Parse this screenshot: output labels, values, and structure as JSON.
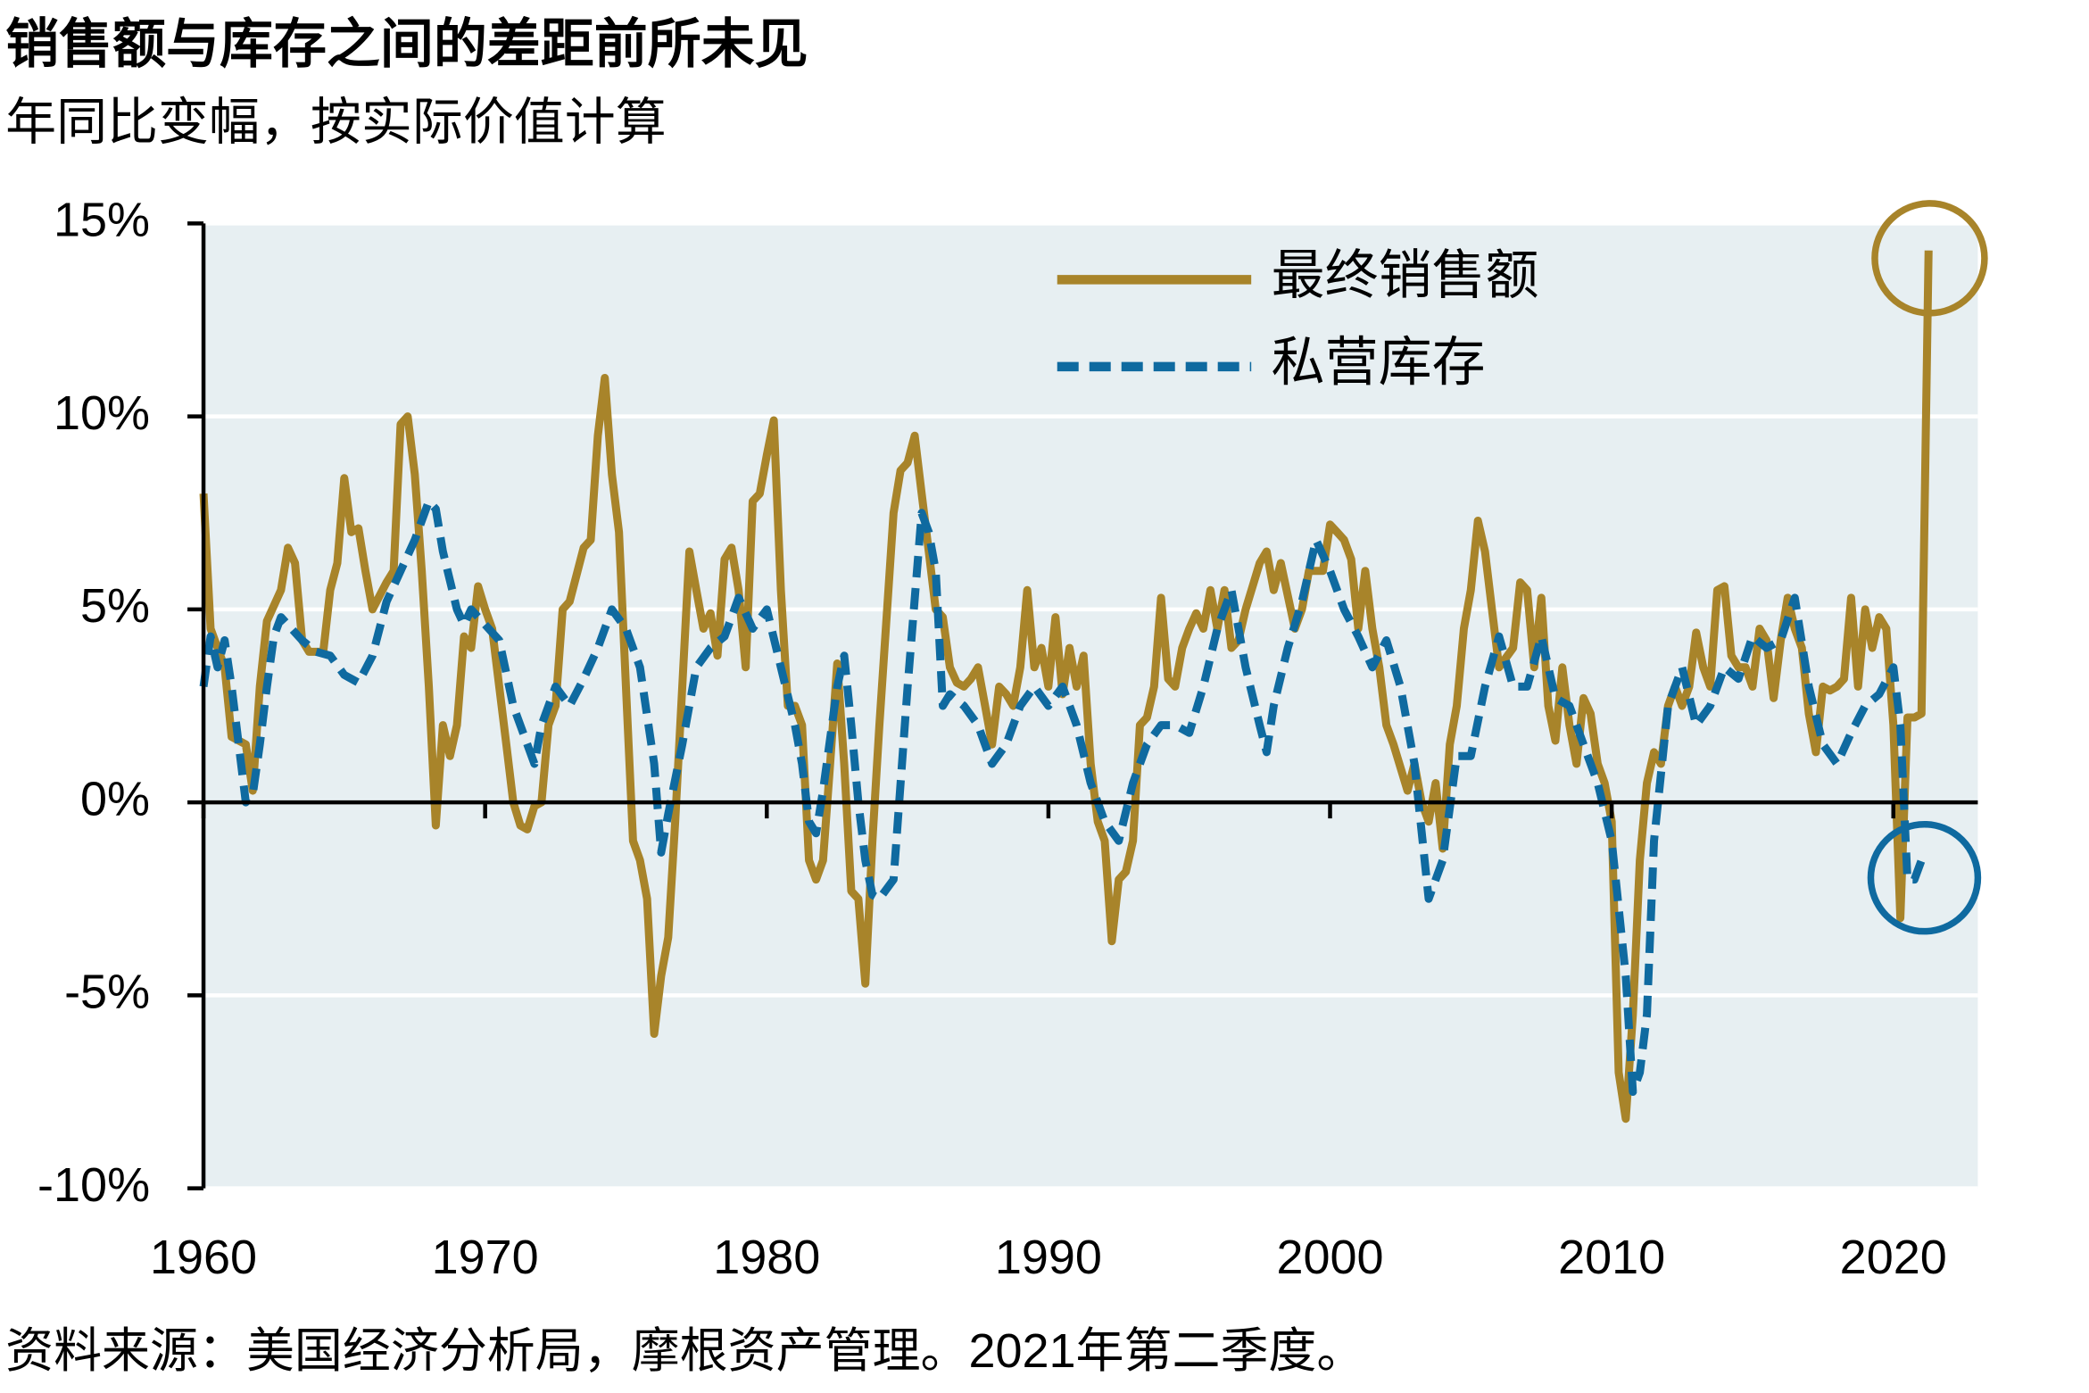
{
  "chart_data": {
    "type": "line",
    "title": "销售额与库存之间的差距前所未见",
    "subtitle": "年同比变幅，按实际价值计算",
    "source": "资料来源：美国经济分析局，摩根资产管理。2021年第二季度。",
    "xlim": [
      1960,
      2023
    ],
    "xticks": [
      1960,
      1970,
      1980,
      1990,
      2000,
      2010,
      2020
    ],
    "ylim": [
      -10,
      15
    ],
    "yticks": [
      {
        "value": -10,
        "label": "-10%"
      },
      {
        "value": -5,
        "label": "-5%"
      },
      {
        "value": 0,
        "label": "0%"
      },
      {
        "value": 5,
        "label": "5%"
      },
      {
        "value": 10,
        "label": "10%"
      },
      {
        "value": 15,
        "label": "15%"
      }
    ],
    "grid": true,
    "legend": "top-right",
    "series": [
      {
        "name": "最终销售额",
        "color": "#a8842a",
        "style": "solid",
        "x": [
          1960.0,
          1960.25,
          1960.75,
          1961.0,
          1961.5,
          1961.75,
          1962.0,
          1962.25,
          1962.75,
          1963.0,
          1963.25,
          1963.5,
          1963.75,
          1964.25,
          1964.5,
          1964.75,
          1965.0,
          1965.25,
          1965.5,
          1965.75,
          1966.0,
          1966.5,
          1966.75,
          1967.0,
          1967.25,
          1967.5,
          1967.75,
          1968.0,
          1968.25,
          1968.5,
          1968.75,
          1969.0,
          1969.25,
          1969.5,
          1969.75,
          1970.0,
          1970.25,
          1970.5,
          1970.75,
          1971.0,
          1971.25,
          1971.5,
          1971.75,
          1972.0,
          1972.25,
          1972.5,
          1972.75,
          1973.0,
          1973.5,
          1973.75,
          1974.0,
          1974.25,
          1974.5,
          1974.75,
          1975.0,
          1975.25,
          1975.5,
          1975.75,
          1976.0,
          1976.25,
          1976.5,
          1976.75,
          1977.0,
          1977.25,
          1977.5,
          1977.75,
          1978.0,
          1978.25,
          1978.5,
          1978.75,
          1979.0,
          1979.25,
          1979.5,
          1979.75,
          1980.0,
          1980.25,
          1980.5,
          1980.75,
          1981.0,
          1981.25,
          1981.5,
          1981.75,
          1982.0,
          1982.25,
          1982.5,
          1982.75,
          1983.0,
          1983.25,
          1983.5,
          1983.75,
          1984.0,
          1984.5,
          1984.75,
          1985.0,
          1985.25,
          1985.5,
          1985.75,
          1986.0,
          1986.25,
          1986.5,
          1986.75,
          1987.0,
          1987.25,
          1987.5,
          1987.75,
          1988.0,
          1988.25,
          1988.5,
          1988.75,
          1989.0,
          1989.25,
          1989.5,
          1989.75,
          1990.0,
          1990.25,
          1990.5,
          1990.75,
          1991.0,
          1991.25,
          1991.5,
          1991.75,
          1992.0,
          1992.25,
          1992.5,
          1992.75,
          1993.0,
          1993.25,
          1993.5,
          1993.75,
          1994.0,
          1994.25,
          1994.5,
          1994.75,
          1995.0,
          1995.25,
          1995.5,
          1995.75,
          1996.0,
          1996.25,
          1996.5,
          1996.75,
          1997.0,
          1997.5,
          1997.75,
          1998.0,
          1998.25,
          1998.75,
          1999.0,
          1999.25,
          1999.75,
          2000.0,
          2000.25,
          2000.5,
          2000.75,
          2001.0,
          2001.25,
          2001.5,
          2001.75,
          2002.0,
          2002.25,
          2002.75,
          2003.0,
          2003.25,
          2003.5,
          2003.75,
          2004.0,
          2004.25,
          2004.5,
          2004.75,
          2005.0,
          2005.25,
          2005.5,
          2005.75,
          2006.0,
          2006.5,
          2006.75,
          2007.0,
          2007.25,
          2007.5,
          2007.75,
          2008.0,
          2008.25,
          2008.5,
          2008.75,
          2009.0,
          2009.25,
          2009.5,
          2009.75,
          2010.0,
          2010.25,
          2010.5,
          2010.75,
          2011.0,
          2011.25,
          2011.5,
          2011.75,
          2012.0,
          2012.25,
          2012.5,
          2012.75,
          2013.0,
          2013.25,
          2013.5,
          2013.75,
          2014.0,
          2014.25,
          2014.5,
          2014.75,
          2015.0,
          2015.25,
          2015.5,
          2015.75,
          2016.0,
          2016.25,
          2016.5,
          2016.75,
          2017.0,
          2017.25,
          2017.5,
          2017.75,
          2018.0,
          2018.25,
          2018.5,
          2018.75,
          2019.0,
          2019.25,
          2019.5,
          2019.75,
          2020.0,
          2020.25,
          2020.5,
          2020.75,
          2021.0,
          2021.25
        ],
        "values": [
          8.0,
          4.5,
          3.5,
          1.7,
          1.5,
          0.3,
          3.0,
          4.7,
          5.5,
          6.6,
          6.2,
          4.2,
          3.9,
          3.9,
          5.5,
          6.2,
          8.4,
          7.0,
          7.1,
          6.0,
          5.0,
          5.7,
          6.0,
          9.8,
          10.0,
          8.5,
          6.0,
          3.0,
          -0.6,
          2.0,
          1.2,
          2.0,
          4.3,
          4.0,
          5.6,
          5.0,
          4.5,
          3.0,
          1.5,
          0.0,
          -0.6,
          -0.7,
          -0.1,
          0.0,
          2.0,
          2.5,
          5.0,
          5.2,
          6.6,
          6.8,
          9.5,
          11.0,
          8.5,
          7.0,
          3.0,
          -1.0,
          -1.5,
          -2.5,
          -6.0,
          -4.5,
          -3.5,
          -0.5,
          3.0,
          6.5,
          5.5,
          4.5,
          4.9,
          3.8,
          6.3,
          6.6,
          5.5,
          3.5,
          7.8,
          8.0,
          9.0,
          9.9,
          5.5,
          2.5,
          2.5,
          2.0,
          -1.5,
          -2.0,
          -1.5,
          1.0,
          3.6,
          1.0,
          -2.3,
          -2.5,
          -4.7,
          -1.0,
          2.0,
          7.5,
          8.6,
          8.8,
          9.5,
          8.0,
          6.5,
          5.0,
          4.8,
          3.5,
          3.1,
          3.0,
          3.2,
          3.5,
          2.5,
          1.5,
          3.0,
          2.8,
          2.5,
          3.5,
          5.5,
          3.5,
          4.0,
          3.0,
          4.8,
          2.8,
          4.0,
          3.0,
          3.8,
          1.0,
          -0.5,
          -1.0,
          -3.6,
          -2.0,
          -1.8,
          -1.0,
          2.0,
          2.2,
          3.0,
          5.3,
          3.2,
          3.0,
          4.0,
          4.5,
          4.9,
          4.5,
          5.5,
          4.5,
          5.5,
          4.0,
          4.2,
          5.0,
          6.2,
          6.5,
          5.5,
          6.2,
          4.5,
          5.0,
          6.0,
          6.0,
          7.2,
          7.0,
          6.8,
          6.3,
          4.5,
          6.0,
          4.5,
          3.5,
          2.0,
          1.5,
          0.3,
          1.0,
          0.0,
          -0.5,
          0.5,
          -1.2,
          1.5,
          2.5,
          4.5,
          5.5,
          7.3,
          6.5,
          5.0,
          3.5,
          4.0,
          5.7,
          5.5,
          3.5,
          5.3,
          2.5,
          1.6,
          3.5,
          2.0,
          1.0,
          2.7,
          2.3,
          1.0,
          0.5,
          -0.5,
          -7.0,
          -8.2,
          -5.5,
          -1.5,
          0.5,
          1.3,
          1.0,
          2.5,
          3.0,
          2.5,
          3.0,
          4.4,
          3.5,
          3.0,
          5.5,
          5.6,
          3.8,
          3.5,
          3.5,
          3.0,
          4.5,
          4.2,
          2.7,
          4.2,
          5.3,
          4.5,
          4.0,
          2.3,
          1.3,
          3.0,
          2.9,
          3.0,
          3.2,
          5.3,
          3.0,
          5.0,
          4.0,
          4.8,
          4.5,
          2.0,
          -3.0,
          2.2,
          2.2,
          2.3,
          14.3
        ]
      },
      {
        "name": "私营库存",
        "color": "#0f6aa0",
        "style": "dashed",
        "x": [
          1960.0,
          1960.25,
          1960.5,
          1960.75,
          1961.0,
          1961.25,
          1961.5,
          1961.75,
          1962.0,
          1962.25,
          1962.5,
          1962.75,
          1963.0,
          1963.5,
          1964.0,
          1964.5,
          1965.0,
          1965.5,
          1966.0,
          1966.5,
          1967.0,
          1967.5,
          1968.0,
          1968.25,
          1968.5,
          1969.0,
          1969.25,
          1969.5,
          1970.0,
          1970.5,
          1971.0,
          1971.5,
          1971.75,
          1972.0,
          1972.5,
          1973.0,
          1973.5,
          1974.0,
          1974.5,
          1975.0,
          1975.5,
          1976.0,
          1976.25,
          1976.5,
          1977.0,
          1977.5,
          1978.0,
          1978.5,
          1979.0,
          1979.5,
          1980.0,
          1980.5,
          1981.0,
          1981.25,
          1981.5,
          1981.75,
          1982.0,
          1982.5,
          1982.75,
          1983.0,
          1983.25,
          1983.5,
          1983.75,
          1984.0,
          1984.5,
          1985.0,
          1985.5,
          1985.75,
          1986.0,
          1986.25,
          1986.5,
          1987.0,
          1987.5,
          1988.0,
          1988.5,
          1989.0,
          1989.5,
          1990.0,
          1990.5,
          1991.0,
          1991.5,
          1992.0,
          1992.5,
          1993.0,
          1993.5,
          1994.0,
          1994.5,
          1995.0,
          1995.5,
          1996.0,
          1996.5,
          1997.0,
          1997.5,
          1997.75,
          1998.0,
          1998.5,
          1999.0,
          1999.5,
          2000.0,
          2000.5,
          2001.0,
          2001.5,
          2002.0,
          2002.5,
          2003.0,
          2003.5,
          2004.0,
          2004.5,
          2005.0,
          2005.5,
          2006.0,
          2006.5,
          2007.0,
          2007.5,
          2008.0,
          2008.5,
          2009.0,
          2009.5,
          2010.0,
          2010.5,
          2010.75,
          2011.0,
          2011.25,
          2011.5,
          2012.0,
          2012.5,
          2013.0,
          2013.5,
          2014.0,
          2014.5,
          2015.0,
          2015.5,
          2016.0,
          2016.5,
          2017.0,
          2017.5,
          2018.0,
          2018.5,
          2019.0,
          2019.5,
          2020.0,
          2020.25,
          2020.5,
          2020.75,
          2021.0,
          2021.25
        ],
        "values": [
          3.0,
          4.3,
          3.5,
          4.2,
          3.0,
          1.5,
          0.0,
          0.2,
          1.5,
          3.0,
          4.3,
          4.8,
          4.6,
          4.2,
          3.9,
          3.8,
          3.3,
          3.1,
          3.8,
          5.2,
          6.0,
          6.8,
          7.8,
          7.6,
          6.5,
          5.0,
          4.6,
          5.0,
          4.6,
          4.2,
          2.5,
          1.5,
          1.0,
          2.0,
          3.0,
          2.5,
          3.2,
          4.0,
          5.0,
          4.5,
          3.5,
          1.0,
          -1.3,
          -0.3,
          1.5,
          3.5,
          4.0,
          4.3,
          5.3,
          4.5,
          5.0,
          3.5,
          2.0,
          1.0,
          -0.5,
          -0.8,
          0.3,
          3.0,
          3.8,
          2.0,
          0.0,
          -1.5,
          -2.4,
          -2.5,
          -2.0,
          3.0,
          7.5,
          7.0,
          6.0,
          2.5,
          2.8,
          2.5,
          2.0,
          1.0,
          1.5,
          2.5,
          3.0,
          2.5,
          3.0,
          2.0,
          0.5,
          -0.5,
          -1.0,
          0.5,
          1.5,
          2.0,
          2.0,
          1.8,
          3.0,
          4.5,
          5.5,
          3.5,
          2.0,
          1.3,
          2.5,
          4.0,
          5.2,
          6.8,
          6.0,
          5.0,
          4.3,
          3.5,
          4.2,
          3.0,
          1.0,
          -2.5,
          -1.5,
          1.2,
          1.2,
          3.0,
          4.3,
          3.0,
          3.0,
          4.3,
          2.7,
          2.5,
          1.5,
          0.5,
          -1.0,
          -4.5,
          -7.5,
          -7.0,
          -5.5,
          -1.0,
          2.5,
          3.5,
          2.0,
          2.5,
          3.5,
          3.2,
          4.3,
          4.0,
          4.2,
          5.3,
          3.0,
          1.5,
          1.0,
          1.8,
          2.5,
          2.8,
          3.5,
          2.0,
          -2.0,
          -2.0,
          -1.5,
          -1.5
        ]
      }
    ]
  }
}
